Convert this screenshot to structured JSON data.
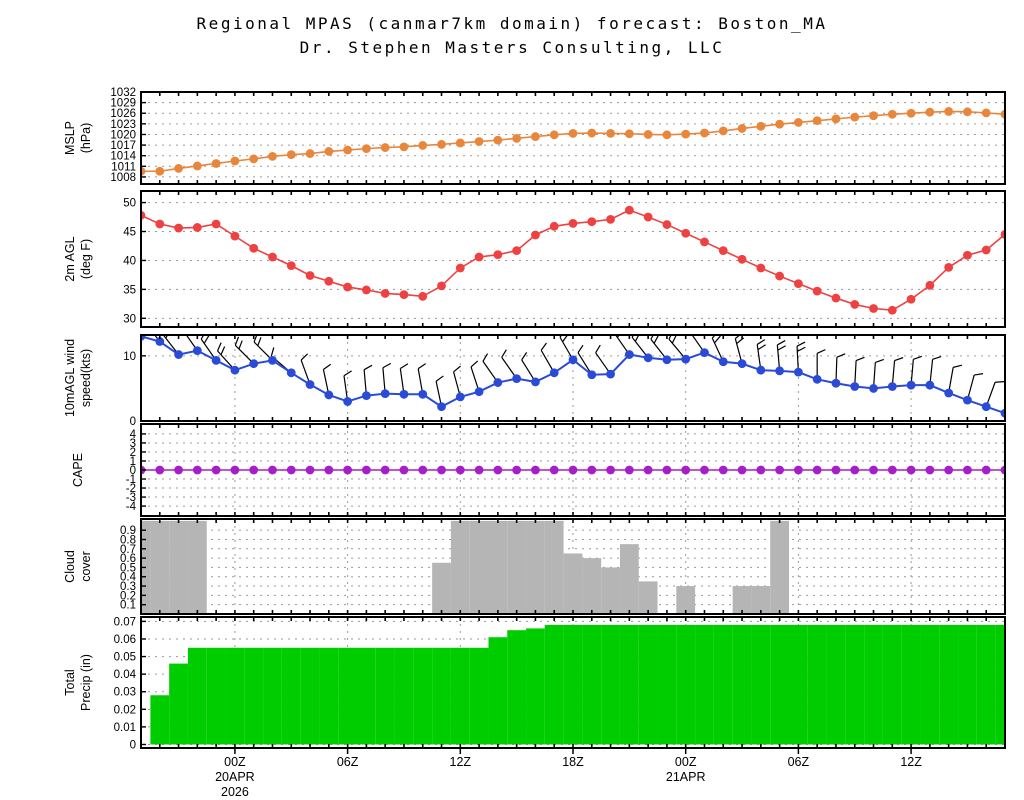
{
  "title": {
    "line1": "Regional MPAS (canmar7km domain) forecast: Boston_MA",
    "line2": "Dr. Stephen Masters Consulting, LLC"
  },
  "colors": {
    "mslp": "#e8863c",
    "temperature": "#ee4141",
    "wind": "#2a4ad8",
    "cape": "#a51ec8",
    "cloud": "#b5b5b5",
    "precip": "#00cd00",
    "grid": "#9a9a9a",
    "axis": "#000000"
  },
  "time_axis": {
    "hours_per_point": 1,
    "first_point_offset_hours": -5,
    "points": 47,
    "ticks": [
      {
        "hour": 0,
        "labels": [
          "00Z",
          "20APR",
          "2026"
        ]
      },
      {
        "hour": 6,
        "labels": [
          "06Z"
        ]
      },
      {
        "hour": 12,
        "labels": [
          "12Z"
        ]
      },
      {
        "hour": 18,
        "labels": [
          "18Z"
        ]
      },
      {
        "hour": 24,
        "labels": [
          "00Z",
          "21APR"
        ]
      },
      {
        "hour": 30,
        "labels": [
          "06Z"
        ]
      },
      {
        "hour": 36,
        "labels": [
          "12Z"
        ]
      }
    ]
  },
  "chart_data": [
    {
      "id": "mslp",
      "type": "line",
      "legend": "none",
      "grid": "dotted-horizontal",
      "ylabel": [
        "MSLP",
        "(hPa)"
      ],
      "ylim": [
        1006,
        1032
      ],
      "yticks": [
        1008,
        1011,
        1014,
        1017,
        1020,
        1023,
        1026,
        1029,
        1032
      ],
      "color_key": "mslp",
      "vgrid": false,
      "values": [
        1009.6,
        1009.6,
        1010.4,
        1011.1,
        1011.8,
        1012.5,
        1013.1,
        1013.8,
        1014.3,
        1014.6,
        1015.2,
        1015.6,
        1016.0,
        1016.3,
        1016.5,
        1016.9,
        1017.2,
        1017.6,
        1018.0,
        1018.4,
        1018.9,
        1019.4,
        1019.9,
        1020.3,
        1020.4,
        1020.3,
        1020.2,
        1020.0,
        1019.9,
        1020.1,
        1020.4,
        1021.0,
        1021.7,
        1022.3,
        1022.9,
        1023.4,
        1023.9,
        1024.4,
        1024.9,
        1025.3,
        1025.7,
        1026.0,
        1026.3,
        1026.5,
        1026.4,
        1026.1,
        1025.7
      ]
    },
    {
      "id": "temp2m",
      "type": "line",
      "legend": "none",
      "grid": "dotted-horizontal",
      "ylabel": [
        "2m AGL",
        "(deg F)"
      ],
      "ylim": [
        28.5,
        52
      ],
      "yticks": [
        30,
        35,
        40,
        45,
        50
      ],
      "color_key": "temperature",
      "vgrid": false,
      "values": [
        47.8,
        46.3,
        45.6,
        45.7,
        46.3,
        44.2,
        42.1,
        40.6,
        39.1,
        37.4,
        36.4,
        35.4,
        34.9,
        34.3,
        34.1,
        33.8,
        35.6,
        38.7,
        40.6,
        41.0,
        41.7,
        44.4,
        45.9,
        46.4,
        46.7,
        47.1,
        48.7,
        47.5,
        46.2,
        44.7,
        43.2,
        41.7,
        40.2,
        38.7,
        37.3,
        36.0,
        34.7,
        33.5,
        32.4,
        31.7,
        31.4,
        33.3,
        35.7,
        38.8,
        40.9,
        41.8,
        44.5
      ]
    },
    {
      "id": "wind10m",
      "type": "line-barbs",
      "legend": "none",
      "grid": "dotted",
      "ylabel": [
        "10mAGL wind",
        "speed(kts)"
      ],
      "ylim": [
        0,
        13.2
      ],
      "yticks": [
        0,
        10
      ],
      "color_key": "wind",
      "vgrid": true,
      "values": [
        13.0,
        12.2,
        10.2,
        10.8,
        9.3,
        7.8,
        8.8,
        9.3,
        7.4,
        5.6,
        4.0,
        3.0,
        3.9,
        4.2,
        4.1,
        4.1,
        2.2,
        3.7,
        4.5,
        5.9,
        6.5,
        6.0,
        7.4,
        9.4,
        7.1,
        7.2,
        10.2,
        9.7,
        9.4,
        9.5,
        10.5,
        9.1,
        8.8,
        7.8,
        7.7,
        7.5,
        6.4,
        5.8,
        5.3,
        5.0,
        5.3,
        5.5,
        5.5,
        4.3,
        3.2,
        2.2,
        1.2
      ],
      "barb_angles_deg": [
        -38,
        -38,
        -38,
        -35,
        -35,
        -42,
        -45,
        -45,
        -50,
        -20,
        -12,
        -8,
        -5,
        -5,
        -8,
        -10,
        -12,
        -15,
        -18,
        -35,
        -35,
        -32,
        -30,
        -30,
        -32,
        -35,
        -35,
        -38,
        -38,
        -40,
        -35,
        -25,
        -15,
        -8,
        -5,
        -3,
        0,
        2,
        3,
        4,
        5,
        5,
        6,
        10,
        15,
        20,
        30
      ]
    },
    {
      "id": "cape",
      "type": "line",
      "legend": "none",
      "grid": "dotted",
      "ylabel": [
        "CAPE"
      ],
      "ylim": [
        -5.1,
        5.1
      ],
      "yticks": [
        4,
        3,
        2,
        1,
        0,
        -1,
        -2,
        -3,
        -4
      ],
      "color_key": "cape",
      "vgrid": true,
      "values": [
        0,
        0,
        0,
        0,
        0,
        0,
        0,
        0,
        0,
        0,
        0,
        0,
        0,
        0,
        0,
        0,
        0,
        0,
        0,
        0,
        0,
        0,
        0,
        0,
        0,
        0,
        0,
        0,
        0,
        0,
        0,
        0,
        0,
        0,
        0,
        0,
        0,
        0,
        0,
        0,
        0,
        0,
        0,
        0,
        0,
        0,
        0
      ]
    },
    {
      "id": "cloudcover",
      "type": "bar",
      "legend": "none",
      "grid": "dotted",
      "ylabel": [
        "Cloud",
        "cover"
      ],
      "ylim": [
        0,
        1.02
      ],
      "yticks": [
        0.9,
        0.8,
        0.7,
        0.6,
        0.5,
        0.4,
        0.3,
        0.2,
        0.1
      ],
      "color_key": "cloud",
      "vgrid": true,
      "values": [
        1,
        1,
        1,
        1,
        0,
        0,
        0,
        0,
        0,
        0,
        0,
        0,
        0,
        0,
        0,
        0,
        0.55,
        1,
        1,
        1,
        1,
        1,
        1,
        0.65,
        0.6,
        0.5,
        0.75,
        0.35,
        0,
        0.3,
        0,
        0,
        0.3,
        0.3,
        1,
        0,
        0,
        0,
        0,
        0,
        0,
        0,
        0,
        0,
        0,
        0,
        0
      ]
    },
    {
      "id": "precip",
      "type": "area",
      "legend": "none",
      "grid": "dotted",
      "ylabel": [
        "Total",
        "Precip (in)"
      ],
      "ylim": [
        -0.002,
        0.0725
      ],
      "yticks": [
        0.07,
        0.06,
        0.05,
        0.04,
        0.03,
        0.02,
        0.01,
        0
      ],
      "color_key": "precip",
      "vgrid": true,
      "values": [
        0,
        0.028,
        0.046,
        0.055,
        0.055,
        0.055,
        0.055,
        0.055,
        0.055,
        0.055,
        0.055,
        0.055,
        0.055,
        0.055,
        0.055,
        0.055,
        0.055,
        0.055,
        0.055,
        0.061,
        0.065,
        0.066,
        0.068,
        0.068,
        0.068,
        0.068,
        0.068,
        0.068,
        0.068,
        0.068,
        0.068,
        0.068,
        0.068,
        0.068,
        0.068,
        0.068,
        0.068,
        0.068,
        0.068,
        0.068,
        0.068,
        0.068,
        0.068,
        0.068,
        0.068,
        0.068,
        0.068
      ]
    }
  ]
}
